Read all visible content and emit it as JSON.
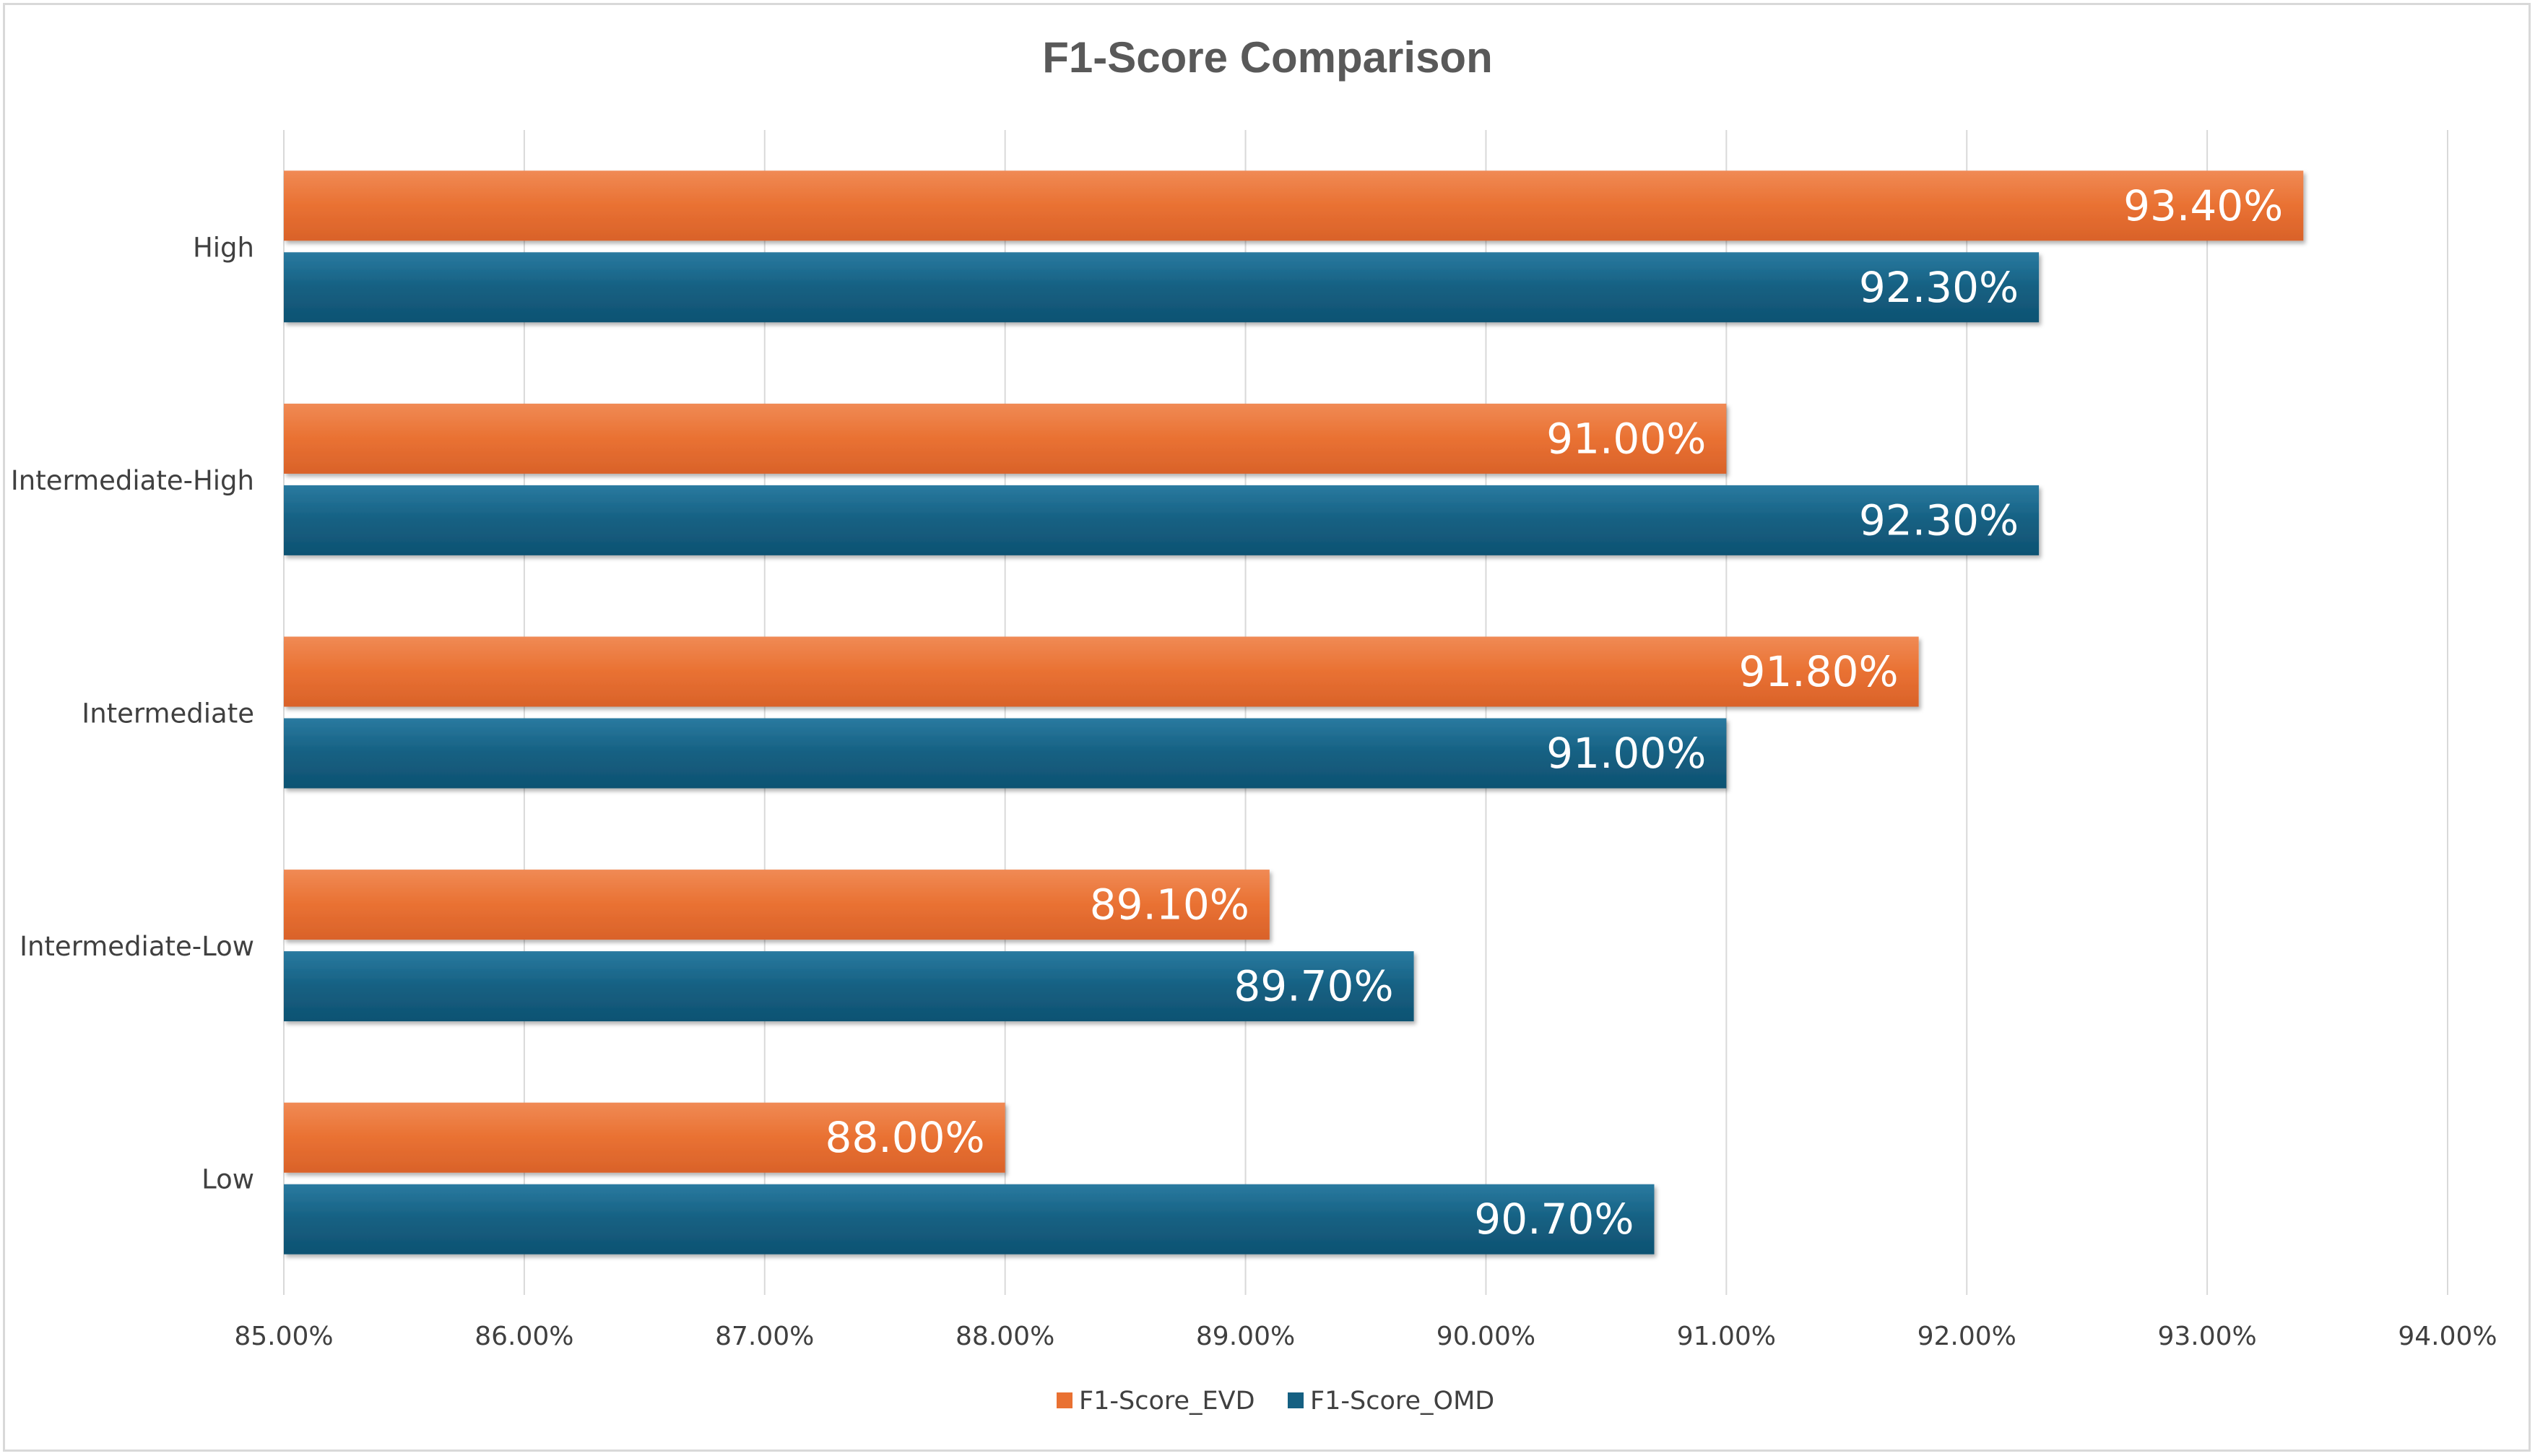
{
  "chart_data": {
    "type": "bar",
    "orientation": "horizontal",
    "title": "F1-Score Comparison",
    "categories": [
      "High",
      "Intermediate-High",
      "Intermediate",
      "Intermediate-Low",
      "Low"
    ],
    "series": [
      {
        "name": "F1-Score_EVD",
        "color": "#e97132",
        "values": [
          93.4,
          91.0,
          91.8,
          89.1,
          88.0
        ],
        "labels": [
          "93.40%",
          "91.00%",
          "91.80%",
          "89.10%",
          "88.00%"
        ]
      },
      {
        "name": "F1-Score_OMD",
        "color": "#156082",
        "values": [
          92.3,
          92.3,
          91.0,
          89.7,
          90.7
        ],
        "labels": [
          "92.30%",
          "92.30%",
          "91.00%",
          "89.70%",
          "90.70%"
        ]
      }
    ],
    "xlim": [
      85,
      94
    ],
    "x_ticks": [
      85,
      86,
      87,
      88,
      89,
      90,
      91,
      92,
      93,
      94
    ],
    "x_tick_labels": [
      "85.00%",
      "86.00%",
      "87.00%",
      "88.00%",
      "89.00%",
      "90.00%",
      "91.00%",
      "92.00%",
      "93.00%",
      "94.00%"
    ],
    "xlabel": "",
    "ylabel": "",
    "grid": "vertical",
    "legend_position": "bottom"
  }
}
